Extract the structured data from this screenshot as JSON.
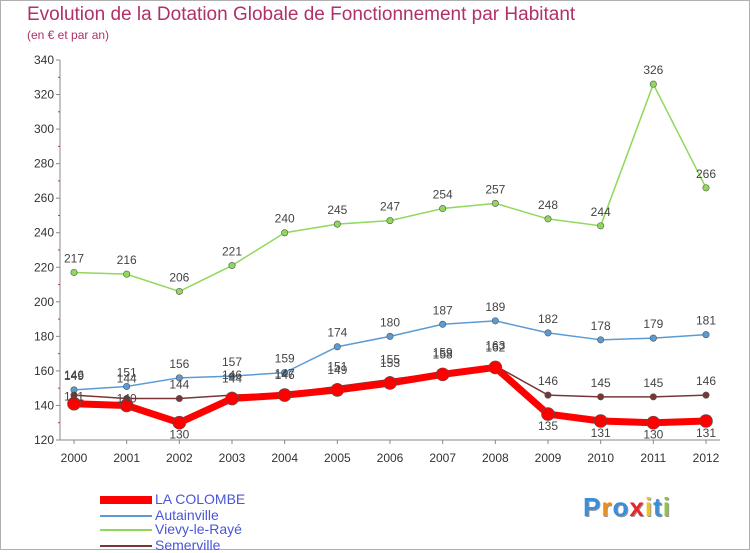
{
  "title": "Evolution de la Dotation Globale de Fonctionnement par Habitant",
  "subtitle": "(en € et par an)",
  "logo": "Proxiti",
  "chart_data": {
    "type": "line",
    "x": [
      2000,
      2001,
      2002,
      2003,
      2004,
      2005,
      2006,
      2007,
      2008,
      2009,
      2010,
      2011,
      2012
    ],
    "ylim": [
      120,
      340
    ],
    "yticks": [
      120,
      140,
      160,
      180,
      200,
      220,
      240,
      260,
      280,
      300,
      320,
      340
    ],
    "grid": false,
    "legend": "bottom-left",
    "series": [
      {
        "name": "LA COLOMBE",
        "color": "#ff0000",
        "values": [
          141,
          140,
          130,
          144,
          146,
          149,
          153,
          158,
          162,
          135,
          131,
          130,
          131
        ]
      },
      {
        "name": "Autainville",
        "color": "#5b9bd5",
        "values": [
          149,
          151,
          156,
          157,
          159,
          174,
          180,
          187,
          189,
          182,
          178,
          179,
          181
        ]
      },
      {
        "name": "Vievy-le-Rayé",
        "color": "#8fd85a",
        "values": [
          217,
          216,
          206,
          221,
          240,
          245,
          247,
          254,
          257,
          248,
          244,
          326,
          266
        ]
      },
      {
        "name": "Semerville",
        "color": "#7a3636",
        "values": [
          146,
          144,
          144,
          146,
          147,
          151,
          155,
          159,
          163,
          146,
          145,
          145,
          146
        ]
      }
    ]
  }
}
